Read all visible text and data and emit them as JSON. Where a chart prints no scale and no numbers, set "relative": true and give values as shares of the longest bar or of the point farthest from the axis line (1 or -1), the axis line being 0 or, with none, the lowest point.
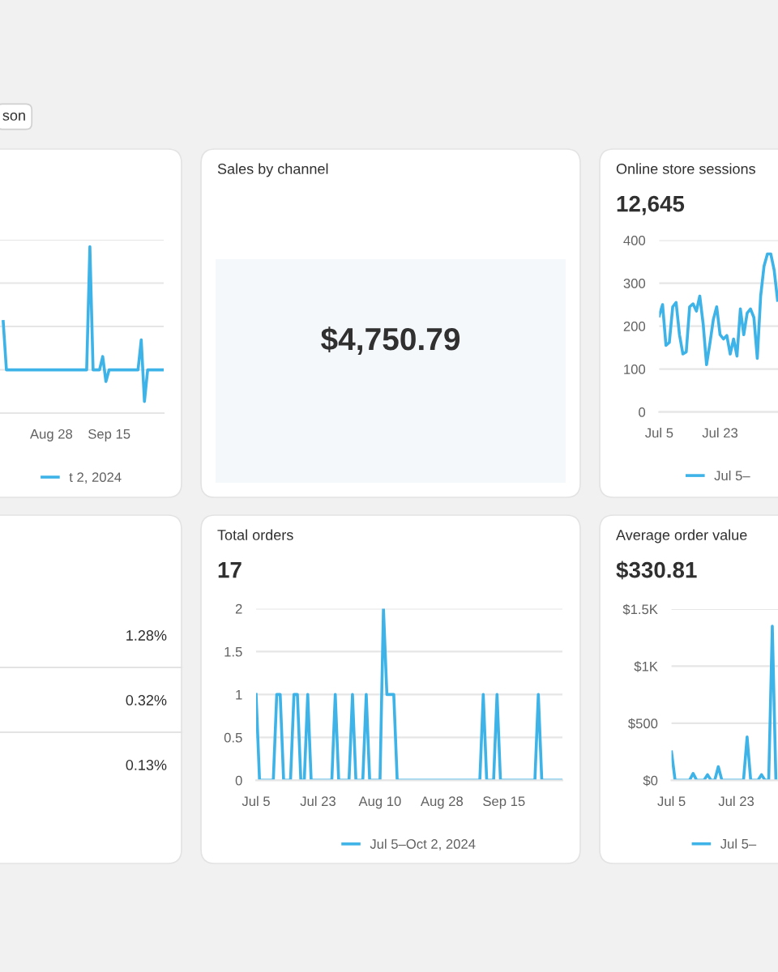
{
  "chart_data": [
    {
      "type": "line",
      "relative": true,
      "annotations": [
        "son"
      ],
      "series": [
        {
          "name": "t 2, 2024",
          "color": "#3eb3e8",
          "x": [
            "2024-08-13",
            "2024-08-14",
            "2024-09-08",
            "2024-09-09",
            "2024-09-10",
            "2024-09-12",
            "2024-09-13",
            "2024-09-14",
            "2024-09-15",
            "2024-09-24",
            "2024-09-25",
            "2024-09-26",
            "2024-09-27",
            "2024-10-02"
          ],
          "values": [
            0.55,
            0.26,
            0.26,
            1,
            0.26,
            0.26,
            0.34,
            0.19,
            0.26,
            0.26,
            0.44,
            0.07,
            0.26,
            0.26
          ]
        }
      ],
      "xlim": [
        "2024-08-12",
        "2024-10-02"
      ],
      "xticks": [
        {
          "value": "2024-08-28",
          "label": "Aug 28"
        },
        {
          "value": "2024-09-15",
          "label": "Sep 15"
        }
      ],
      "tick_labels": "x",
      "grid": "y",
      "legend": "bottom"
    },
    {
      "type": "other",
      "title": "Sales by channel",
      "annotations": [
        "$4,750.79"
      ]
    },
    {
      "type": "line",
      "title": "Online store sessions",
      "subtitle": "12,645",
      "series": [
        {
          "name": "Jul 5–",
          "color": "#3eb3e8",
          "x": [
            "2024-07-05",
            "2024-07-06",
            "2024-07-07",
            "2024-07-08",
            "2024-07-09",
            "2024-07-10",
            "2024-07-11",
            "2024-07-12",
            "2024-07-13",
            "2024-07-14",
            "2024-07-15",
            "2024-07-16",
            "2024-07-17",
            "2024-07-18",
            "2024-07-19",
            "2024-07-20",
            "2024-07-21",
            "2024-07-22",
            "2024-07-23",
            "2024-07-24",
            "2024-07-25",
            "2024-07-26",
            "2024-07-27",
            "2024-07-28",
            "2024-07-29",
            "2024-07-30",
            "2024-07-31",
            "2024-08-01",
            "2024-08-02",
            "2024-08-03",
            "2024-08-04",
            "2024-08-05",
            "2024-08-06",
            "2024-08-07",
            "2024-08-08",
            "2024-08-09"
          ],
          "values": [
            224,
            250,
            155,
            162,
            245,
            255,
            180,
            135,
            140,
            245,
            252,
            235,
            270,
            205,
            110,
            160,
            215,
            245,
            180,
            170,
            178,
            135,
            170,
            130,
            240,
            180,
            230,
            240,
            220,
            125,
            270,
            340,
            368,
            368,
            330,
            260
          ]
        }
      ],
      "xlim": [
        "2024-07-05",
        "2024-08-09T03:00"
      ],
      "xticks": [
        {
          "value": "2024-07-05",
          "label": "Jul 5"
        },
        {
          "value": "2024-07-23",
          "label": "Jul 23"
        }
      ],
      "ylim": [
        0,
        400
      ],
      "yticks": [
        0,
        100,
        200,
        300,
        400
      ],
      "grid": "y",
      "legend": "bottom"
    },
    {
      "type": "other",
      "annotations": [
        "1.28%",
        "0.32%",
        "0.13%"
      ]
    },
    {
      "type": "line",
      "title": "Total orders",
      "subtitle": "17",
      "series": [
        {
          "name": "Jul 5–Oct 2, 2024",
          "color": "#3eb3e8",
          "x": [
            "2024-07-05",
            "2024-07-06",
            "2024-07-10",
            "2024-07-11",
            "2024-07-12",
            "2024-07-13",
            "2024-07-15",
            "2024-07-16",
            "2024-07-17",
            "2024-07-18",
            "2024-07-19",
            "2024-07-20",
            "2024-07-21",
            "2024-07-27",
            "2024-07-28",
            "2024-07-29",
            "2024-08-01",
            "2024-08-02",
            "2024-08-03",
            "2024-08-05",
            "2024-08-06",
            "2024-08-07",
            "2024-08-10",
            "2024-08-11",
            "2024-08-12",
            "2024-08-13",
            "2024-08-14",
            "2024-08-15",
            "2024-09-08",
            "2024-09-09",
            "2024-09-10",
            "2024-09-12",
            "2024-09-13",
            "2024-09-14",
            "2024-09-24",
            "2024-09-25",
            "2024-09-26",
            "2024-10-02"
          ],
          "values": [
            1,
            0,
            0,
            1,
            1,
            0,
            0,
            1,
            1,
            0,
            0,
            1,
            0,
            0,
            1,
            0,
            0,
            1,
            0,
            0,
            1,
            0,
            0,
            2,
            1,
            1,
            1,
            0,
            0,
            1,
            0,
            0,
            1,
            0,
            0,
            1,
            0,
            0
          ]
        }
      ],
      "xlim": [
        "2024-07-05",
        "2024-10-02"
      ],
      "xticks": [
        {
          "value": "2024-07-05",
          "label": "Jul 5"
        },
        {
          "value": "2024-07-23",
          "label": "Jul 23"
        },
        {
          "value": "2024-08-10",
          "label": "Aug 10"
        },
        {
          "value": "2024-08-28",
          "label": "Aug 28"
        },
        {
          "value": "2024-09-15",
          "label": "Sep 15"
        }
      ],
      "ylim": [
        0,
        2
      ],
      "yticks": [
        0,
        0.5,
        1,
        1.5,
        2
      ],
      "grid": "y",
      "legend": "bottom"
    },
    {
      "type": "line",
      "title": "Average order value",
      "subtitle": "$330.81",
      "series": [
        {
          "name": "Jul 5–",
          "color": "#3eb3e8",
          "x": [
            "2024-07-05",
            "2024-07-06",
            "2024-07-10",
            "2024-07-11",
            "2024-07-12",
            "2024-07-14",
            "2024-07-15",
            "2024-07-16",
            "2024-07-17",
            "2024-07-18",
            "2024-07-19",
            "2024-07-25",
            "2024-07-26",
            "2024-07-27",
            "2024-07-29",
            "2024-07-30",
            "2024-07-31",
            "2024-08-01",
            "2024-08-02",
            "2024-08-03"
          ],
          "values": [
            250,
            0,
            0,
            60,
            0,
            0,
            50,
            0,
            0,
            120,
            0,
            0,
            380,
            0,
            0,
            50,
            0,
            0,
            1350,
            0
          ]
        }
      ],
      "xlim": [
        "2024-07-05",
        "2024-08-03T14:00"
      ],
      "xticks": [
        {
          "value": "2024-07-05",
          "label": "Jul 5"
        },
        {
          "value": "2024-07-23",
          "label": "Jul 23"
        }
      ],
      "ylim": [
        0,
        1500
      ],
      "yticks": [
        {
          "value": 0,
          "label": "$0"
        },
        {
          "value": 500,
          "label": "$500"
        },
        {
          "value": 1000,
          "label": "$1K"
        },
        {
          "value": 1500,
          "label": "$1.5K"
        }
      ],
      "grid": "y",
      "legend": "bottom"
    }
  ]
}
